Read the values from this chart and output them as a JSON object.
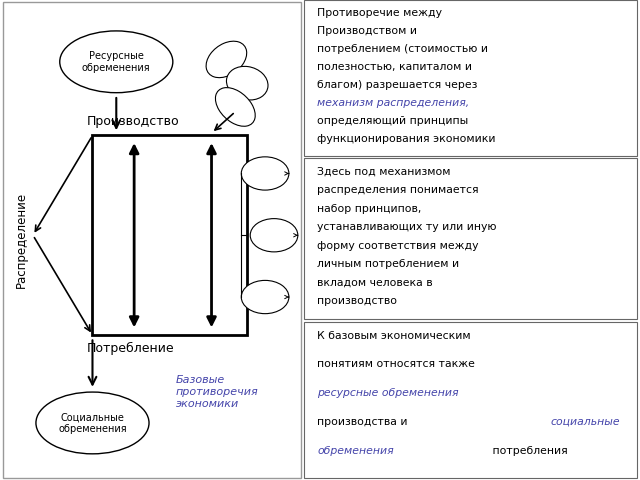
{
  "left_panel": {
    "bg_color": "#ffffff",
    "border_color": "#999999",
    "production_label": "Производство",
    "consumption_label": "Потребление",
    "distribution_label": "Распределение",
    "resource_label": "Ресурсные\nобременения",
    "social_label": "Социальные\nобременения",
    "base_label": "Базовые\nпротиворечия\nэкономики",
    "base_label_color": "#4444aa"
  },
  "box1_lines": [
    {
      "text": "Противоречие между",
      "color": "#000000",
      "italic": false
    },
    {
      "text": "Производством и",
      "color": "#000000",
      "italic": false
    },
    {
      "text": "потреблением (стоимостью и",
      "color": "#000000",
      "italic": false
    },
    {
      "text": "полезностью, капиталом и",
      "color": "#000000",
      "italic": false
    },
    {
      "text": "благом) разрешается через",
      "color": "#000000",
      "italic": false
    },
    {
      "text": "механизм распределения,",
      "color": "#4444aa",
      "italic": true
    },
    {
      "text": "определяющий принципы",
      "color": "#000000",
      "italic": false
    },
    {
      "text": "функционирования экономики",
      "color": "#000000",
      "italic": false
    }
  ],
  "box2_lines": [
    {
      "text": "Здесь под механизмом",
      "color": "#000000",
      "italic": false
    },
    {
      "text": "распределения понимается",
      "color": "#000000",
      "italic": false
    },
    {
      "text": "набор принципов,",
      "color": "#000000",
      "italic": false
    },
    {
      "text": "устанавливающих ту или иную",
      "color": "#000000",
      "italic": false
    },
    {
      "text": "форму соответствия между",
      "color": "#000000",
      "italic": false
    },
    {
      "text": "личным потреблением и",
      "color": "#000000",
      "italic": false
    },
    {
      "text": "вкладом человека в",
      "color": "#000000",
      "italic": false
    },
    {
      "text": "производство",
      "color": "#000000",
      "italic": false
    }
  ],
  "box3_lines": [
    {
      "text": "К базовым экономическим",
      "color": "#000000",
      "italic": false
    },
    {
      "text": "понятиям относятся также",
      "color": "#000000",
      "italic": false
    },
    {
      "text": "ресурсные обременения",
      "color": "#4444aa",
      "italic": true
    },
    {
      "text": "производства и социальные",
      "color_parts": [
        {
          "text": "производства и ",
          "color": "#000000",
          "italic": false
        },
        {
          "text": "социальные",
          "color": "#4444aa",
          "italic": true
        }
      ]
    },
    {
      "text": "обременения потребления",
      "color_parts": [
        {
          "text": "обременения",
          "color": "#4444aa",
          "italic": true
        },
        {
          "text": " потребления",
          "color": "#000000",
          "italic": false
        }
      ]
    }
  ]
}
